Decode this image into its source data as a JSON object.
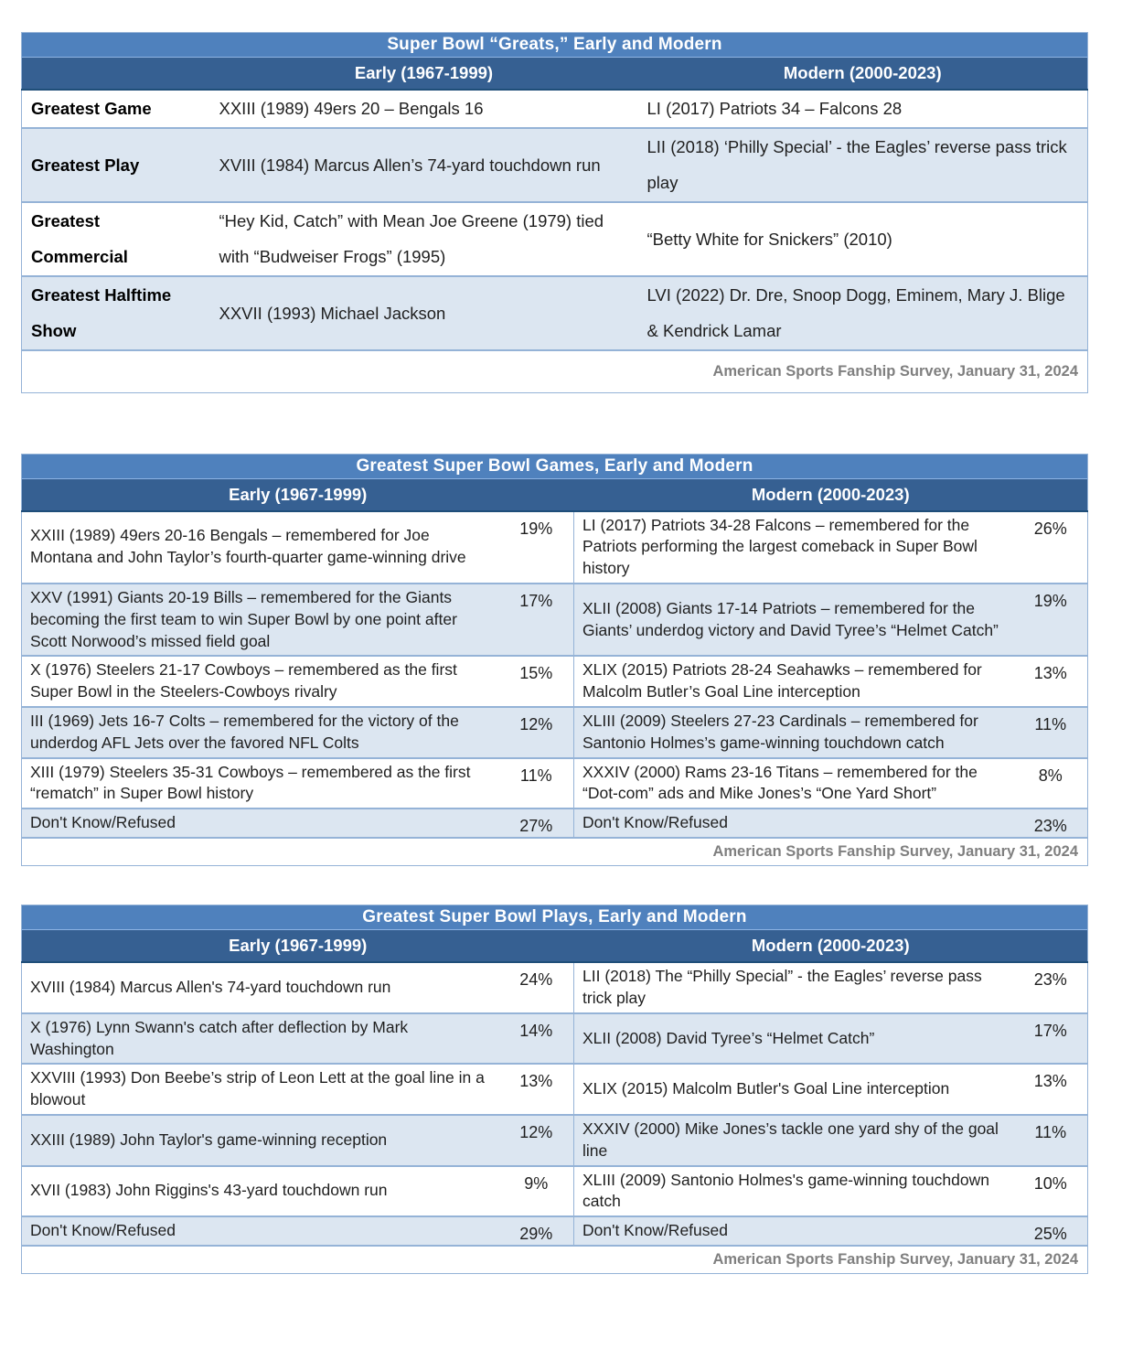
{
  "colors": {
    "title_bar_bg": "#4F81BD",
    "column_header_bg": "#366092",
    "alt_row_bg": "#DCE6F1",
    "table_border": "#95B3D7",
    "header_text": "#FFFFFF",
    "source_text": "#7F7F7F"
  },
  "tables": [
    {
      "title": "Super Bowl “Greats,” Early and Modern",
      "col_early": "Early (1967-1999)",
      "col_modern": "Modern (2000-2023)",
      "rows": [
        {
          "label": "Greatest Game",
          "early": "XXIII (1989) 49ers 20 – Bengals 16",
          "modern": "LI (2017) Patriots 34 – Falcons 28"
        },
        {
          "label": "Greatest Play",
          "early": "XVIII (1984) Marcus Allen’s 74-yard touchdown run",
          "modern": "LII (2018) ‘Philly Special’ - the Eagles’ reverse pass trick play"
        },
        {
          "label": "Greatest Commercial",
          "early": "“Hey Kid, Catch” with Mean Joe Greene (1979) tied with “Budweiser Frogs” (1995)",
          "modern": "“Betty White for Snickers” (2010)"
        },
        {
          "label": "Greatest Halftime Show",
          "early": "XXVII (1993) Michael Jackson",
          "modern": "LVI (2022) Dr. Dre, Snoop Dogg, Eminem, Mary J. Blige & Kendrick Lamar"
        }
      ],
      "source": "American Sports Fanship Survey, January 31, 2024"
    },
    {
      "title": "Greatest Super Bowl Games, Early and Modern",
      "col_early": "Early (1967-1999)",
      "col_modern": "Modern (2000-2023)",
      "rows": [
        {
          "early": "XXIII (1989) 49ers 20-16 Bengals – remembered for Joe Montana and John Taylor’s fourth-quarter game-winning drive",
          "early_pct": "19%",
          "modern": "LI (2017) Patriots 34-28 Falcons – remembered for the Patriots performing the largest comeback in Super Bowl history",
          "modern_pct": "26%"
        },
        {
          "early": "XXV (1991) Giants 20-19 Bills – remembered for the Giants becoming the first team to win Super Bowl by one point after Scott Norwood’s missed field goal",
          "early_pct": "17%",
          "modern": "XLII (2008) Giants 17-14 Patriots – remembered for the Giants’ underdog victory and David Tyree’s “Helmet Catch”",
          "modern_pct": "19%"
        },
        {
          "early": "X (1976) Steelers 21-17 Cowboys – remembered as the first Super Bowl in the Steelers-Cowboys rivalry",
          "early_pct": "15%",
          "modern": "XLIX (2015) Patriots 28-24 Seahawks – remembered for Malcolm Butler’s Goal Line interception",
          "modern_pct": "13%"
        },
        {
          "early": "III (1969) Jets 16-7 Colts – remembered for the victory of the underdog AFL Jets over the favored NFL Colts",
          "early_pct": "12%",
          "modern": "XLIII (2009) Steelers 27-23 Cardinals – remembered for Santonio Holmes’s game-winning touchdown catch",
          "modern_pct": "11%"
        },
        {
          "early": "XIII (1979) Steelers 35-31 Cowboys – remembered as the first “rematch” in Super Bowl history",
          "early_pct": "11%",
          "modern": "XXXIV (2000) Rams 23-16 Titans – remembered for the “Dot-com” ads and Mike Jones’s “One Yard Short”",
          "modern_pct": "8%"
        },
        {
          "early": "Don't Know/Refused",
          "early_pct": "27%",
          "modern": "Don't Know/Refused",
          "modern_pct": "23%"
        }
      ],
      "source": "American Sports Fanship Survey, January 31, 2024"
    },
    {
      "title": "Greatest Super Bowl Plays, Early and Modern",
      "col_early": "Early (1967-1999)",
      "col_modern": "Modern (2000-2023)",
      "rows": [
        {
          "early": "XVIII (1984) Marcus Allen's 74-yard touchdown run",
          "early_pct": "24%",
          "modern": "LII (2018) The “Philly Special” - the Eagles’ reverse pass trick play",
          "modern_pct": "23%"
        },
        {
          "early": "X (1976) Lynn Swann's catch after deflection by Mark Washington",
          "early_pct": "14%",
          "modern": "XLII (2008) David Tyree’s “Helmet Catch”",
          "modern_pct": "17%"
        },
        {
          "early": "XXVIII (1993) Don Beebe’s strip of Leon Lett at the goal line in a blowout",
          "early_pct": "13%",
          "modern": "XLIX (2015) Malcolm Butler's Goal Line interception",
          "modern_pct": "13%"
        },
        {
          "early": "XXIII (1989) John Taylor's game-winning reception",
          "early_pct": "12%",
          "modern": "XXXIV (2000) Mike Jones’s tackle one yard shy of the goal line",
          "modern_pct": "11%"
        },
        {
          "early": "XVII (1983) John Riggins's 43-yard touchdown run",
          "early_pct": "9%",
          "modern": "XLIII (2009) Santonio Holmes's game-winning touchdown catch",
          "modern_pct": "10%"
        },
        {
          "early": "Don't Know/Refused",
          "early_pct": "29%",
          "modern": "Don't Know/Refused",
          "modern_pct": "25%"
        }
      ],
      "source": "American Sports Fanship Survey, January 31, 2024"
    }
  ]
}
